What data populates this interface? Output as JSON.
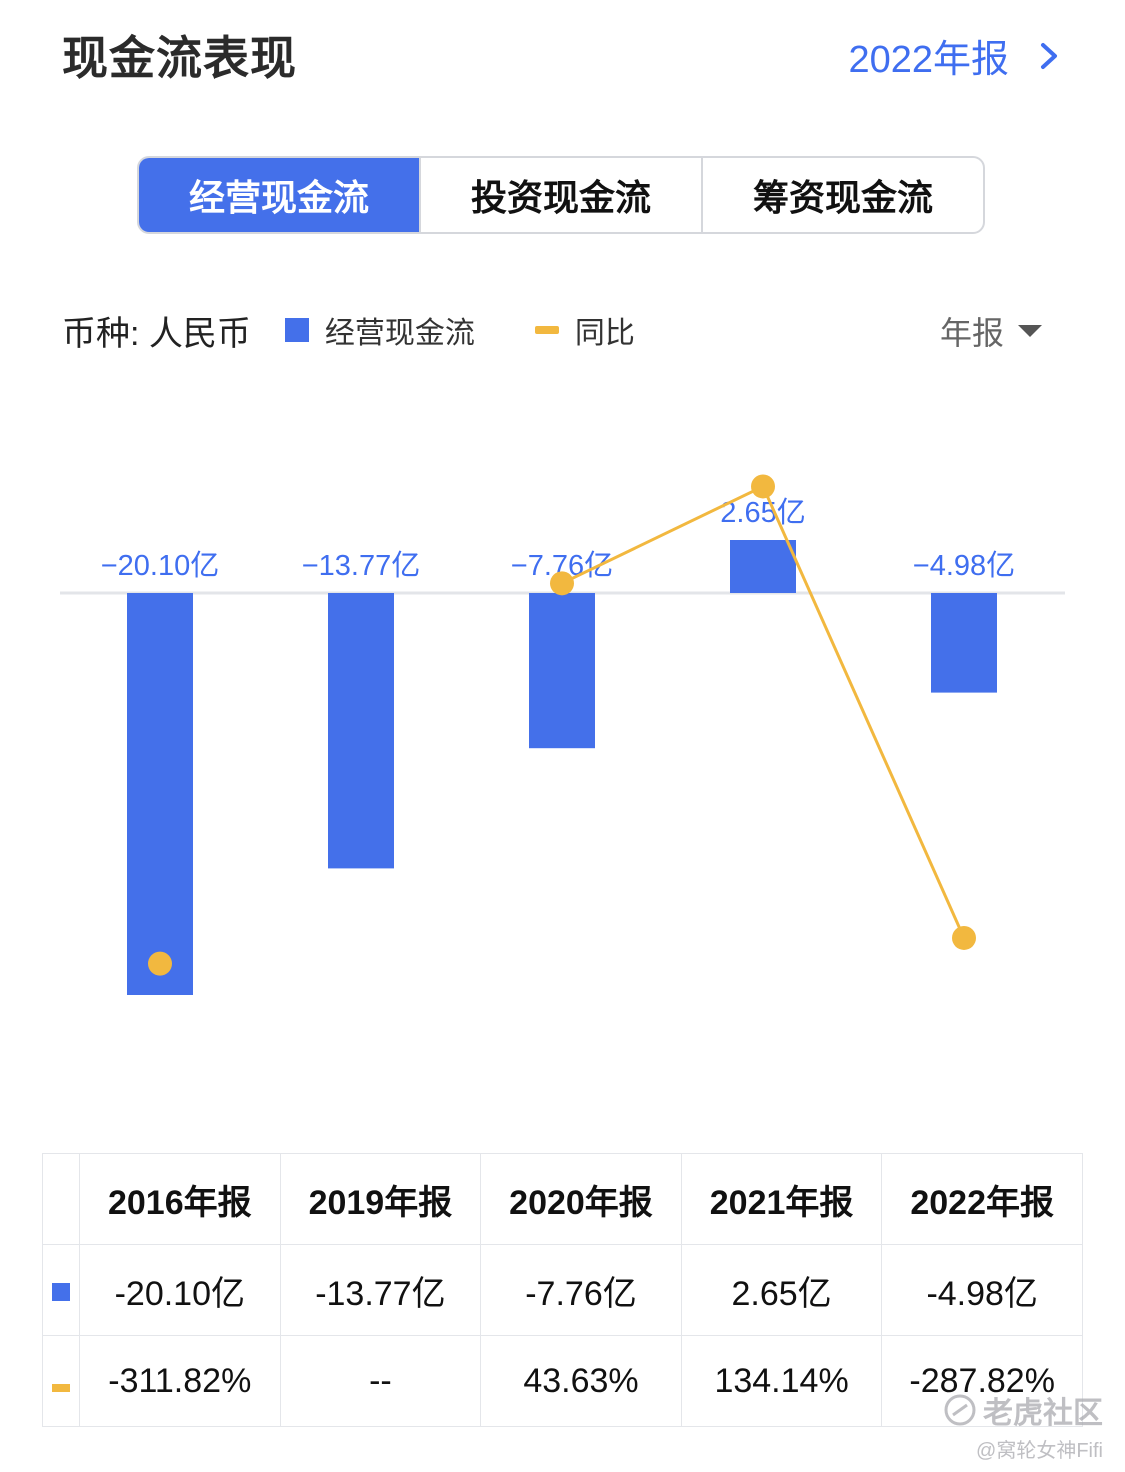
{
  "header": {
    "title": "现金流表现",
    "report_link": "2022年报"
  },
  "tabs": [
    {
      "label": "经营现金流",
      "active": true
    },
    {
      "label": "投资现金流",
      "active": false
    },
    {
      "label": "筹资现金流",
      "active": false
    }
  ],
  "legend": {
    "currency": "币种: 人民币",
    "bar_series": "经营现金流",
    "line_series": "同比",
    "period_select": "年报"
  },
  "colors": {
    "bar": "#4470ea",
    "line": "#f2b83f",
    "positive": "#e24b4b",
    "negative": "#3fae5a",
    "accent": "#3f6ef0"
  },
  "chart_data": {
    "type": "bar",
    "categories": [
      "2016年报",
      "2019年报",
      "2020年报",
      "2021年报",
      "2022年报"
    ],
    "series": [
      {
        "name": "经营现金流",
        "type": "bar",
        "values": [
          -20.1,
          -13.77,
          -7.76,
          2.65,
          -4.98
        ],
        "labels": [
          "−20.10亿",
          "−13.77亿",
          "−7.76亿",
          "2.65亿",
          "−4.98亿"
        ]
      },
      {
        "name": "同比",
        "type": "line",
        "values": [
          -311.82,
          null,
          43.63,
          134.14,
          -287.82
        ]
      }
    ]
  },
  "table": {
    "headers": [
      "2016年报",
      "2019年报",
      "2020年报",
      "2021年报",
      "2022年报"
    ],
    "bar_row": [
      "-20.10亿",
      "-13.77亿",
      "-7.76亿",
      "2.65亿",
      "-4.98亿"
    ],
    "line_row": [
      {
        "text": "-311.82%",
        "sign": "neg"
      },
      {
        "text": "--",
        "sign": "none"
      },
      {
        "text": "43.63%",
        "sign": "pos"
      },
      {
        "text": "134.14%",
        "sign": "pos"
      },
      {
        "text": "-287.82%",
        "sign": "neg"
      }
    ]
  },
  "watermark": {
    "line1": "老虎社区",
    "line2": "@窝轮女神Fifi"
  }
}
